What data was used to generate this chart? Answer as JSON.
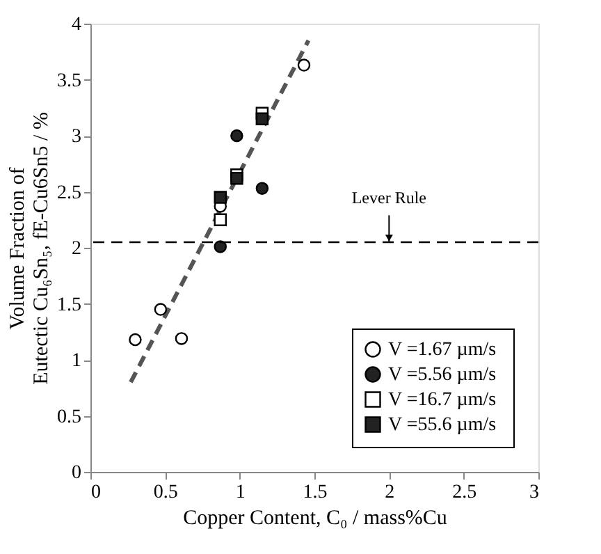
{
  "chart_data": {
    "type": "scatter",
    "xlabel": "Copper Content, C₀ / mass%Cu",
    "ylabel": [
      "Volume Fraction of",
      "Eutectic Cu₆Sn₅, fE-Cu6Sn5 / %"
    ],
    "xlim": [
      0,
      3
    ],
    "xticks": [
      0,
      0.5,
      1,
      1.5,
      2,
      2.5,
      3
    ],
    "ylim": [
      0,
      4
    ],
    "yticks": [
      0,
      0.5,
      1,
      1.5,
      2,
      2.5,
      3,
      3.5,
      4
    ],
    "grid": false,
    "legend": "bottom right",
    "series": [
      {
        "name": "V =1.67  µm/s",
        "color": "#ffffff",
        "marker": "circle",
        "x": [
          0.3,
          0.47,
          0.61,
          0.87,
          1.43
        ],
        "values": [
          1.18,
          1.45,
          1.19,
          2.37,
          3.63
        ]
      },
      {
        "name": "V =5.56  µm/s",
        "color": "#222222",
        "marker": "circle",
        "x": [
          0.87,
          0.98,
          1.15
        ],
        "values": [
          2.01,
          3.0,
          2.53
        ]
      },
      {
        "name": "V =16.7  µm/s",
        "color": "#ffffff",
        "marker": "square",
        "x": [
          0.87,
          0.98,
          1.15
        ],
        "values": [
          2.25,
          2.65,
          3.2
        ]
      },
      {
        "name": "V =55.6  µm/s",
        "color": "#222222",
        "marker": "square",
        "x": [
          0.87,
          0.98,
          1.15
        ],
        "values": [
          2.45,
          2.62,
          3.15
        ]
      },
      {
        "type": "line",
        "color": "#555555",
        "line_style": "dashed",
        "x": [
          0.27,
          1.46
        ],
        "values": [
          0.8,
          3.85
        ]
      }
    ],
    "ref_lines": [
      {
        "axis": "y",
        "value": 2.05,
        "label": "Lever Rule",
        "color": "#000000",
        "line_style": "dashed"
      }
    ]
  }
}
